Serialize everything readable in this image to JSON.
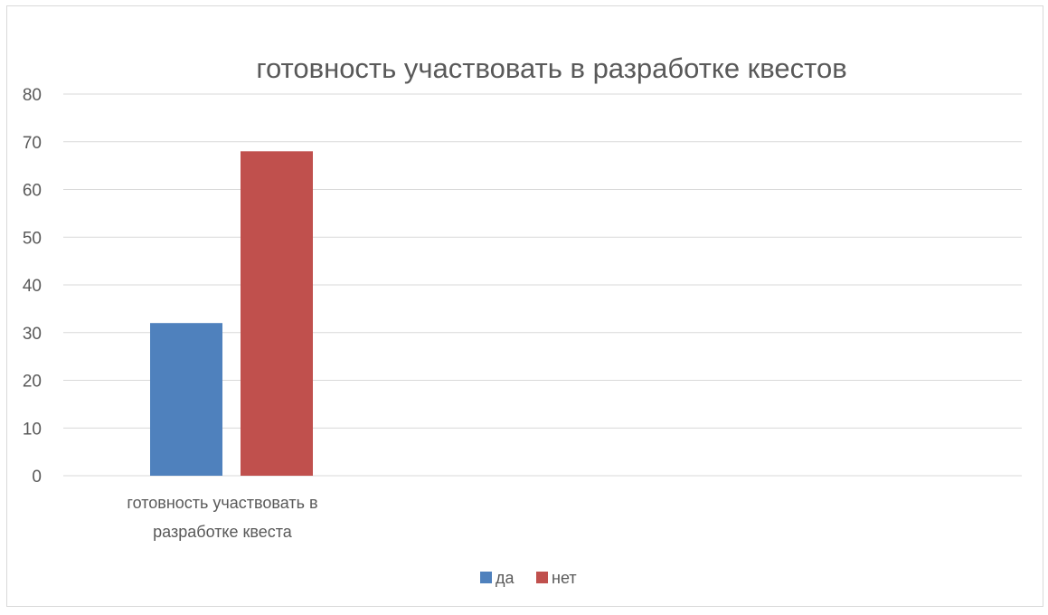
{
  "chart_data": {
    "type": "bar",
    "title": "готовность участвовать в разработке квестов",
    "categories": [
      "готовность участвовать в разработке квеста"
    ],
    "category_lines": [
      [
        "готовность участвовать в",
        "разработке квеста"
      ]
    ],
    "series": [
      {
        "name": "да",
        "values": [
          32
        ],
        "color": "#4f81bd"
      },
      {
        "name": "нет",
        "values": [
          68
        ],
        "color": "#c0504d"
      }
    ],
    "ylim": [
      0,
      80
    ],
    "yticks": [
      "0",
      "10",
      "20",
      "30",
      "40",
      "50",
      "60",
      "70",
      "80"
    ],
    "grid": true,
    "legend": "bottom",
    "xlabel": "",
    "ylabel": ""
  }
}
